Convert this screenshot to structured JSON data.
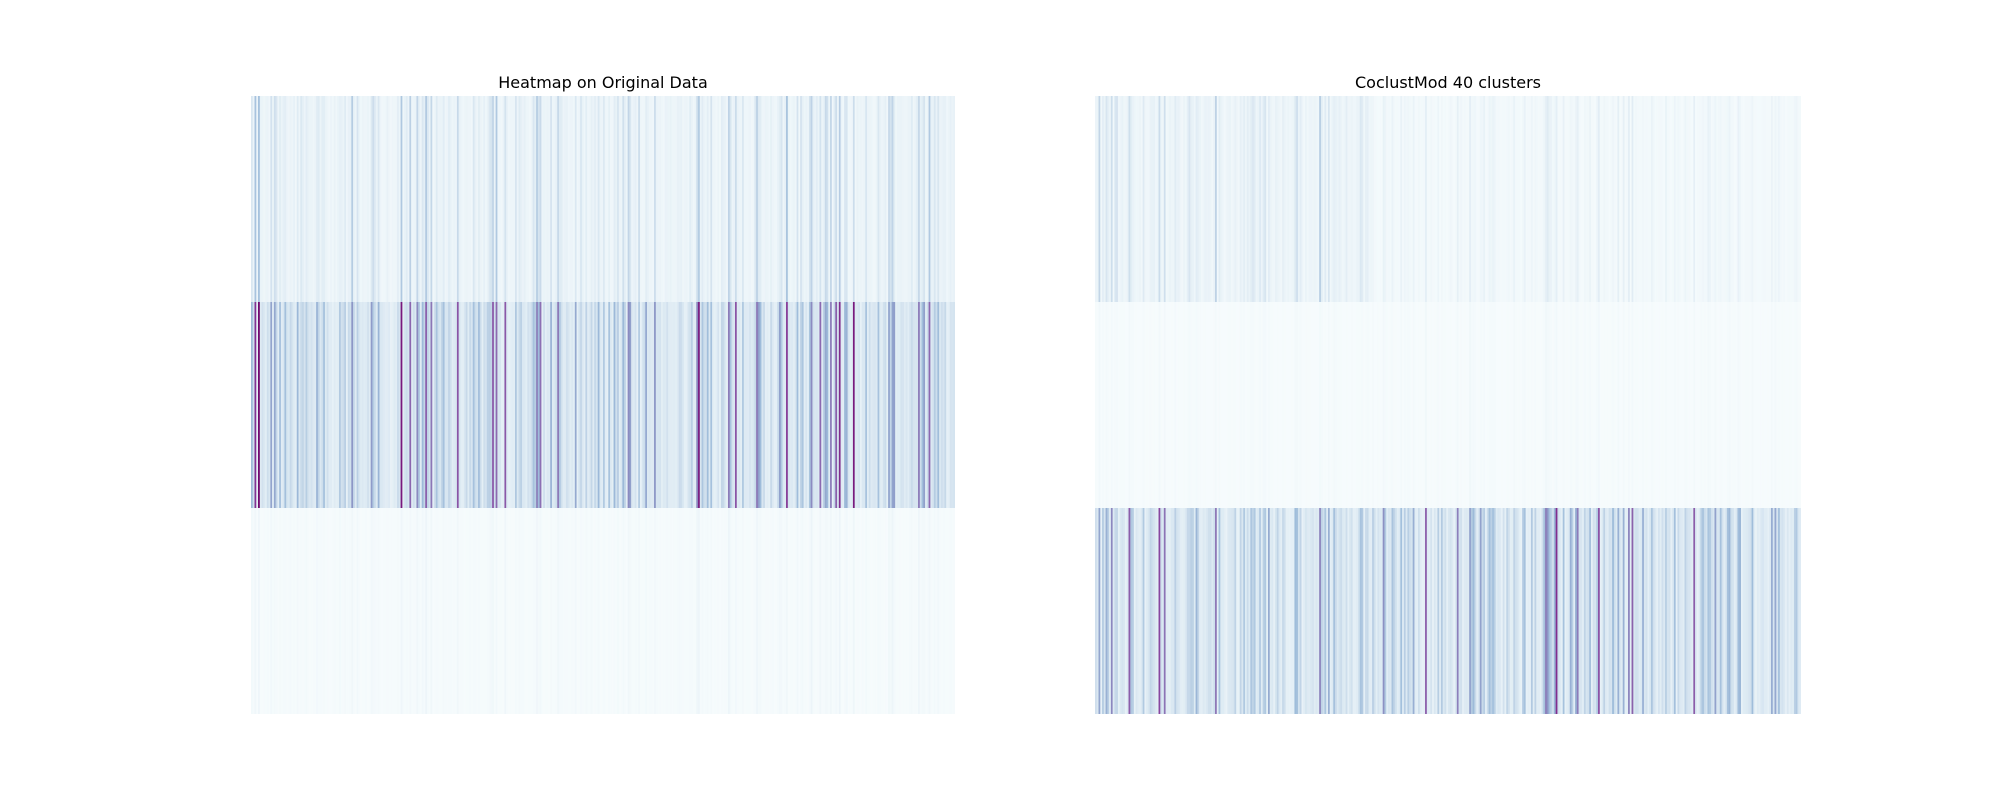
{
  "chart_data": [
    {
      "type": "heatmap",
      "title": "Heatmap on Original Data",
      "colormap": [
        "#f7fcfd",
        "#e0ecf4",
        "#bfd3e6",
        "#9ebcda",
        "#8c96c6",
        "#8c6bb1",
        "#88419d",
        "#6e016b"
      ],
      "row_blocks": 3,
      "n_columns": 400,
      "block_mean_intensity": [
        0.18,
        0.42,
        0.03
      ],
      "seed": 7,
      "grid": false,
      "axes_visible": false
    },
    {
      "type": "heatmap",
      "title": "CoclustMod 40 clusters",
      "colormap": [
        "#f7fcfd",
        "#e0ecf4",
        "#bfd3e6",
        "#9ebcda",
        "#8c96c6",
        "#8c6bb1",
        "#88419d",
        "#6e016b"
      ],
      "row_blocks": 3,
      "n_columns": 400,
      "block_mean_intensity": [
        0.16,
        0.02,
        0.4
      ],
      "seed": 19,
      "grid": false,
      "axes_visible": false
    }
  ]
}
